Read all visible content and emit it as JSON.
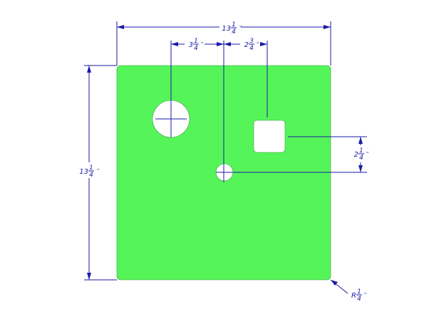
{
  "drawing": {
    "plate_color": "#55f55a",
    "dimension_color": "#1a1aa8",
    "dimensions": {
      "overall_width": {
        "whole": "13",
        "num": "1",
        "den": "4",
        "unit": "\""
      },
      "overall_height": {
        "whole": "13",
        "num": "1",
        "den": "4",
        "unit": "\""
      },
      "large_hole_offset": {
        "whole": "3",
        "num": "1",
        "den": "4",
        "unit": "\""
      },
      "square_offset": {
        "whole": "2",
        "num": "3",
        "den": "4",
        "unit": "\""
      },
      "vertical_offset": {
        "whole": "2",
        "num": "1",
        "den": "4",
        "unit": "\""
      },
      "corner_radius": {
        "whole": "R",
        "num": "1",
        "den": "4",
        "unit": "\""
      }
    }
  }
}
